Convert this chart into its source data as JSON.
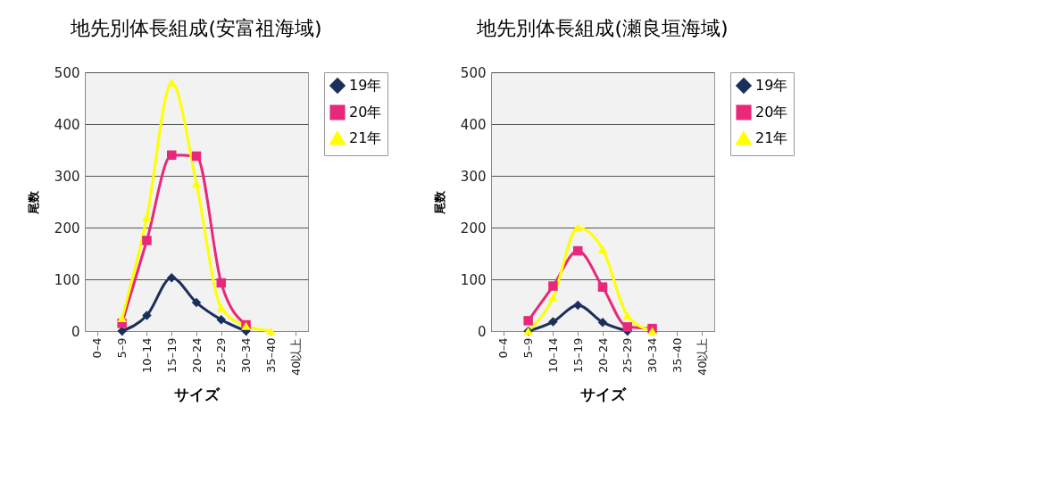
{
  "chart_data": [
    {
      "type": "line",
      "title": "地先別体長組成(安富祖海域)",
      "xlabel": "サイズ",
      "ylabel": "尾数",
      "categories": [
        "0–4",
        "5–9",
        "10–14",
        "15–19",
        "20–24",
        "25–29",
        "30–34",
        "35–40",
        "40以上"
      ],
      "ylim": [
        0,
        500
      ],
      "yticks": [
        0,
        100,
        200,
        300,
        400,
        500
      ],
      "grid": "y",
      "legend": "right",
      "series": [
        {
          "name": "19年",
          "color": "#1b2f5c",
          "marker": "diamond",
          "values": [
            null,
            0,
            30,
            103,
            55,
            22,
            0,
            null,
            null
          ]
        },
        {
          "name": "20年",
          "color": "#e8287a",
          "marker": "square",
          "values": [
            null,
            15,
            175,
            340,
            338,
            93,
            12,
            null,
            null
          ]
        },
        {
          "name": "21年",
          "color": "#ffff00",
          "marker": "triangle",
          "values": [
            null,
            25,
            220,
            480,
            285,
            45,
            10,
            0,
            null
          ]
        }
      ]
    },
    {
      "type": "line",
      "title": "地先別体長組成(瀬良垣海域)",
      "xlabel": "サイズ",
      "ylabel": "尾数",
      "categories": [
        "0–4",
        "5–9",
        "10–14",
        "15–19",
        "20–24",
        "25–29",
        "30–34",
        "35–40",
        "40以上"
      ],
      "ylim": [
        0,
        500
      ],
      "yticks": [
        0,
        100,
        200,
        300,
        400,
        500
      ],
      "grid": "y",
      "legend": "right",
      "series": [
        {
          "name": "19年",
          "color": "#1b2f5c",
          "marker": "diamond",
          "values": [
            null,
            0,
            18,
            50,
            17,
            0,
            null,
            null,
            null
          ]
        },
        {
          "name": "20年",
          "color": "#e8287a",
          "marker": "square",
          "values": [
            null,
            20,
            87,
            155,
            85,
            8,
            5,
            null,
            null
          ]
        },
        {
          "name": "21年",
          "color": "#ffff00",
          "marker": "triangle",
          "values": [
            null,
            0,
            65,
            200,
            158,
            30,
            0,
            null,
            null
          ]
        }
      ]
    }
  ]
}
